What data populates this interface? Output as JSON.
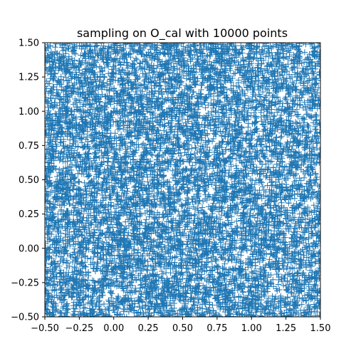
{
  "chart_data": {
    "type": "scatter",
    "title": "sampling on O_cal with 10000 points",
    "xlabel": "",
    "ylabel": "",
    "xlim": [
      -0.5,
      1.5
    ],
    "ylim": [
      -0.5,
      1.5
    ],
    "x_ticks": [
      -0.5,
      -0.25,
      0.0,
      0.25,
      0.5,
      0.75,
      1.0,
      1.25,
      1.5
    ],
    "x_tick_labels": [
      "−0.50",
      "−0.25",
      "0.00",
      "0.25",
      "0.50",
      "0.75",
      "1.00",
      "1.25",
      "1.50"
    ],
    "y_ticks": [
      -0.5,
      -0.25,
      0.0,
      0.25,
      0.5,
      0.75,
      1.0,
      1.25,
      1.5
    ],
    "y_tick_labels": [
      "−0.50",
      "−0.25",
      "0.00",
      "0.25",
      "0.50",
      "0.75",
      "1.00",
      "1.25",
      "1.50"
    ],
    "marker": "plus",
    "marker_color": "#1f77b4",
    "grid": false,
    "legend": "none",
    "series": [
      {
        "name": "",
        "x": [
          -0.4412,
          1.2201,
          0.0837,
          0.6543,
          1.4498,
          -0.1235,
          0.9812,
          0.3276,
          1.0755,
          -0.3819,
          0.5123,
          1.3386,
          0.2047,
          -0.0567,
          0.8814,
          1.1998,
          -0.2741,
          0.4402,
          0.7559,
          1.4021
        ],
        "y": [
          0.2213,
          1.3317,
          -0.3845,
          0.9561,
          0.0412,
          1.1879,
          -0.2034,
          0.6128,
          1.4492,
          0.7735,
          -0.4418,
          0.3054,
          1.0291,
          -0.1376,
          1.2763,
          0.5589,
          0.8807,
          1.4106,
          -0.0259,
          0.6741
        ]
      }
    ],
    "n_points_represented": 10000
  }
}
